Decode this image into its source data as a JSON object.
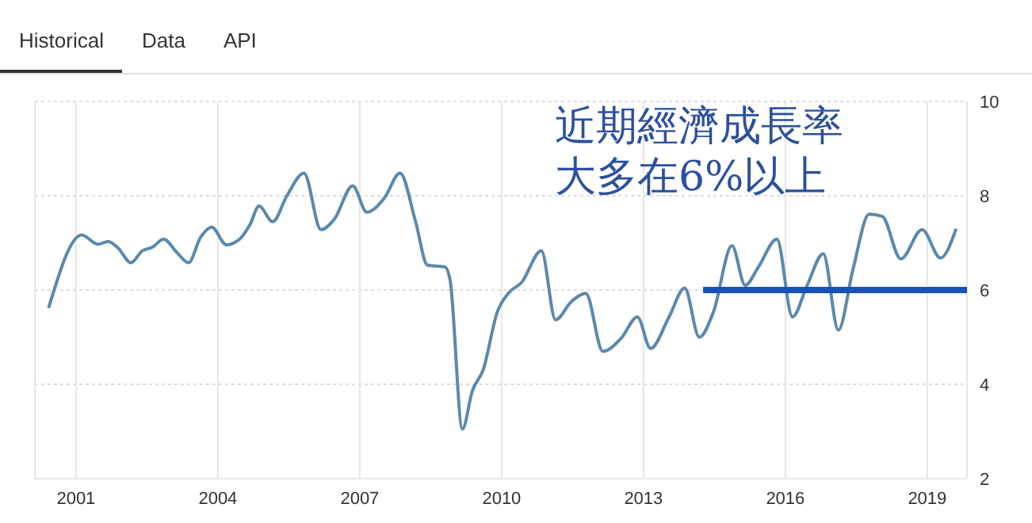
{
  "chart_data": {
    "type": "line",
    "annotations": [
      "Historical",
      "Data",
      "API",
      "近期經濟成長率",
      "大多在6%以上"
    ],
    "xlim": [
      2000.13,
      2019.84
    ],
    "xticks": [
      2001,
      2004,
      2007,
      2010,
      2013,
      2016,
      2019
    ],
    "ylim": [
      2,
      10
    ],
    "yticks": [
      2,
      4,
      6,
      8,
      10
    ],
    "grid": true,
    "marker": "none",
    "line_style": "solid",
    "series": [
      {
        "color": "#5b89ad",
        "x": [
          2000.42,
          2001.12,
          2001.46,
          2001.68,
          2001.9,
          2002.16,
          2002.4,
          2002.62,
          2002.85,
          2003.13,
          2003.38,
          2003.63,
          2003.87,
          2004.18,
          2004.46,
          2004.68,
          2004.87,
          2005.16,
          2005.46,
          2005.82,
          2006.18,
          2006.46,
          2006.85,
          2007.15,
          2007.52,
          2007.85,
          2008.18,
          2008.43,
          2008.8,
          2008.91,
          2009.17,
          2009.38,
          2009.61,
          2009.91,
          2010.14,
          2010.42,
          2010.84,
          2011.14,
          2011.48,
          2011.78,
          2012.14,
          2012.53,
          2012.87,
          2013.15,
          2013.54,
          2013.87,
          2014.18,
          2014.48,
          2014.87,
          2015.15,
          2015.43,
          2015.82,
          2016.15,
          2016.46,
          2016.8,
          2017.12,
          2017.43,
          2017.77,
          2018.05,
          2018.44,
          2018.89,
          2019.28,
          2019.61
        ],
        "values": [
          5.62,
          7.17,
          6.97,
          7.03,
          6.88,
          6.58,
          6.83,
          6.91,
          7.08,
          6.8,
          6.58,
          7.11,
          7.33,
          6.96,
          7.08,
          7.39,
          7.78,
          7.45,
          8.0,
          8.48,
          7.28,
          7.5,
          8.21,
          7.65,
          7.95,
          8.48,
          7.45,
          6.53,
          6.49,
          6.21,
          3.05,
          3.86,
          4.31,
          5.54,
          5.93,
          6.16,
          6.83,
          5.37,
          5.76,
          5.93,
          4.7,
          4.98,
          5.43,
          4.76,
          5.43,
          6.04,
          5.0,
          5.54,
          6.94,
          6.1,
          6.49,
          7.08,
          5.43,
          6.1,
          6.77,
          5.15,
          6.44,
          7.61,
          7.56,
          6.66,
          7.28,
          6.68,
          7.3
        ]
      },
      {
        "color": "#1652b8",
        "x": [
          2014.26,
          2019.84
        ],
        "values": [
          6,
          6
        ]
      }
    ]
  }
}
